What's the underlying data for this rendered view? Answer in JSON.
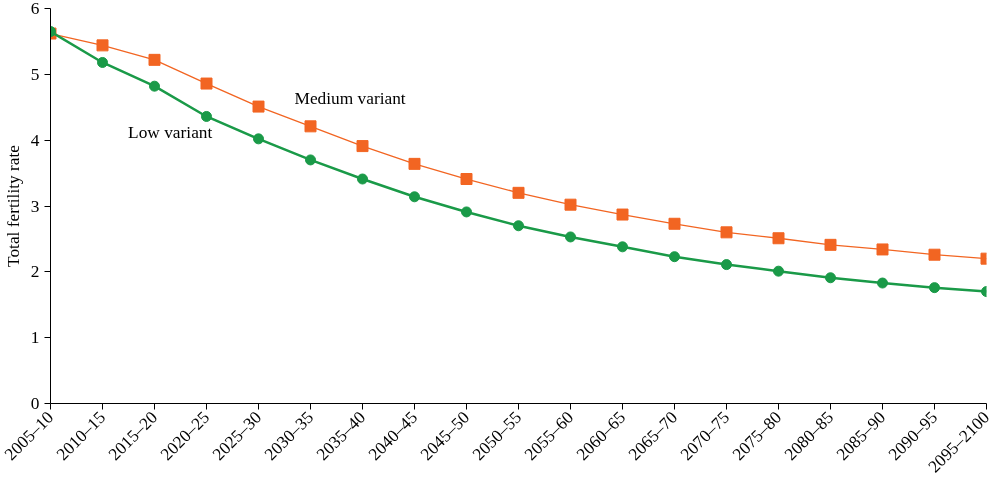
{
  "chart_data": {
    "type": "line",
    "ylabel": "Total fertility rate",
    "categories": [
      "2005–10",
      "2010–15",
      "2015–20",
      "2020–25",
      "2025–30",
      "2030–35",
      "2035–40",
      "2040–45",
      "2045–50",
      "2050–55",
      "2055–60",
      "2060–65",
      "2065–70",
      "2070–75",
      "2075–80",
      "2080–85",
      "2085–90",
      "2090–95",
      "2095–2100"
    ],
    "series": [
      {
        "name": "Medium variant",
        "color": "#f26522",
        "marker": "square",
        "values": [
          5.62,
          5.44,
          5.22,
          4.86,
          4.51,
          4.21,
          3.91,
          3.64,
          3.41,
          3.2,
          3.02,
          2.87,
          2.73,
          2.6,
          2.51,
          2.41,
          2.34,
          2.26,
          2.2
        ]
      },
      {
        "name": "Low variant",
        "color": "#1a9a48",
        "marker": "circle",
        "values": [
          5.65,
          5.18,
          4.82,
          4.36,
          4.02,
          3.7,
          3.41,
          3.14,
          2.91,
          2.7,
          2.53,
          2.38,
          2.23,
          2.11,
          2.01,
          1.91,
          1.83,
          1.76,
          1.7
        ]
      }
    ],
    "ylim": [
      0,
      6
    ],
    "yticks": [
      0,
      1,
      2,
      3,
      4,
      5,
      6
    ],
    "grid": false,
    "line_style": "solid"
  }
}
